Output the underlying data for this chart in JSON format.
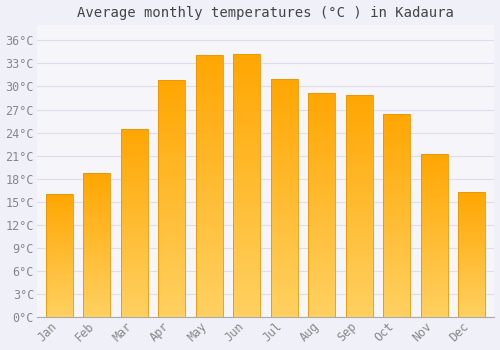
{
  "title": "Average monthly temperatures (°C ) in Kadaura",
  "months": [
    "Jan",
    "Feb",
    "Mar",
    "Apr",
    "May",
    "Jun",
    "Jul",
    "Aug",
    "Sep",
    "Oct",
    "Nov",
    "Dec"
  ],
  "temperatures": [
    16.0,
    18.7,
    24.5,
    30.8,
    34.1,
    34.2,
    31.0,
    29.2,
    28.9,
    26.4,
    21.2,
    16.3
  ],
  "bar_color_top": "#FFA500",
  "bar_color_bottom": "#FFD060",
  "bar_edge_color": "#E89500",
  "background_color": "#F0F0F8",
  "plot_bg_color": "#F5F5FA",
  "grid_color": "#DDDDEE",
  "text_color": "#888888",
  "title_color": "#444444",
  "ylim": [
    0,
    38
  ],
  "yticks": [
    0,
    3,
    6,
    9,
    12,
    15,
    18,
    21,
    24,
    27,
    30,
    33,
    36
  ],
  "title_fontsize": 10,
  "tick_fontsize": 8.5
}
